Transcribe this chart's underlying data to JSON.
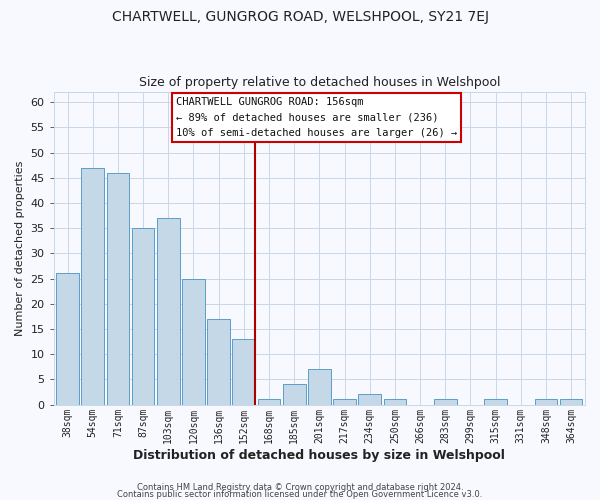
{
  "title": "CHARTWELL, GUNGROG ROAD, WELSHPOOL, SY21 7EJ",
  "subtitle": "Size of property relative to detached houses in Welshpool",
  "xlabel": "Distribution of detached houses by size in Welshpool",
  "ylabel": "Number of detached properties",
  "footer_line1": "Contains HM Land Registry data © Crown copyright and database right 2024.",
  "footer_line2": "Contains public sector information licensed under the Open Government Licence v3.0.",
  "bin_labels": [
    "38sqm",
    "54sqm",
    "71sqm",
    "87sqm",
    "103sqm",
    "120sqm",
    "136sqm",
    "152sqm",
    "168sqm",
    "185sqm",
    "201sqm",
    "217sqm",
    "234sqm",
    "250sqm",
    "266sqm",
    "283sqm",
    "299sqm",
    "315sqm",
    "331sqm",
    "348sqm",
    "364sqm"
  ],
  "bar_heights": [
    26,
    47,
    46,
    35,
    37,
    25,
    17,
    13,
    1,
    4,
    7,
    1,
    2,
    1,
    0,
    1,
    0,
    1,
    0,
    1,
    1
  ],
  "bar_color": "#c5d8e8",
  "bar_edge_color": "#5a9ec9",
  "marker_index": 7,
  "marker_color": "#aa0000",
  "annotation_title": "CHARTWELL GUNGROG ROAD: 156sqm",
  "annotation_line1": "← 89% of detached houses are smaller (236)",
  "annotation_line2": "10% of semi-detached houses are larger (26) →",
  "annotation_box_color": "#ffffff",
  "annotation_box_edge": "#cc0000",
  "ylim": [
    0,
    62
  ],
  "yticks": [
    0,
    5,
    10,
    15,
    20,
    25,
    30,
    35,
    40,
    45,
    50,
    55,
    60
  ],
  "background_color": "#f8f8ff",
  "grid_color": "#c8d8e8"
}
